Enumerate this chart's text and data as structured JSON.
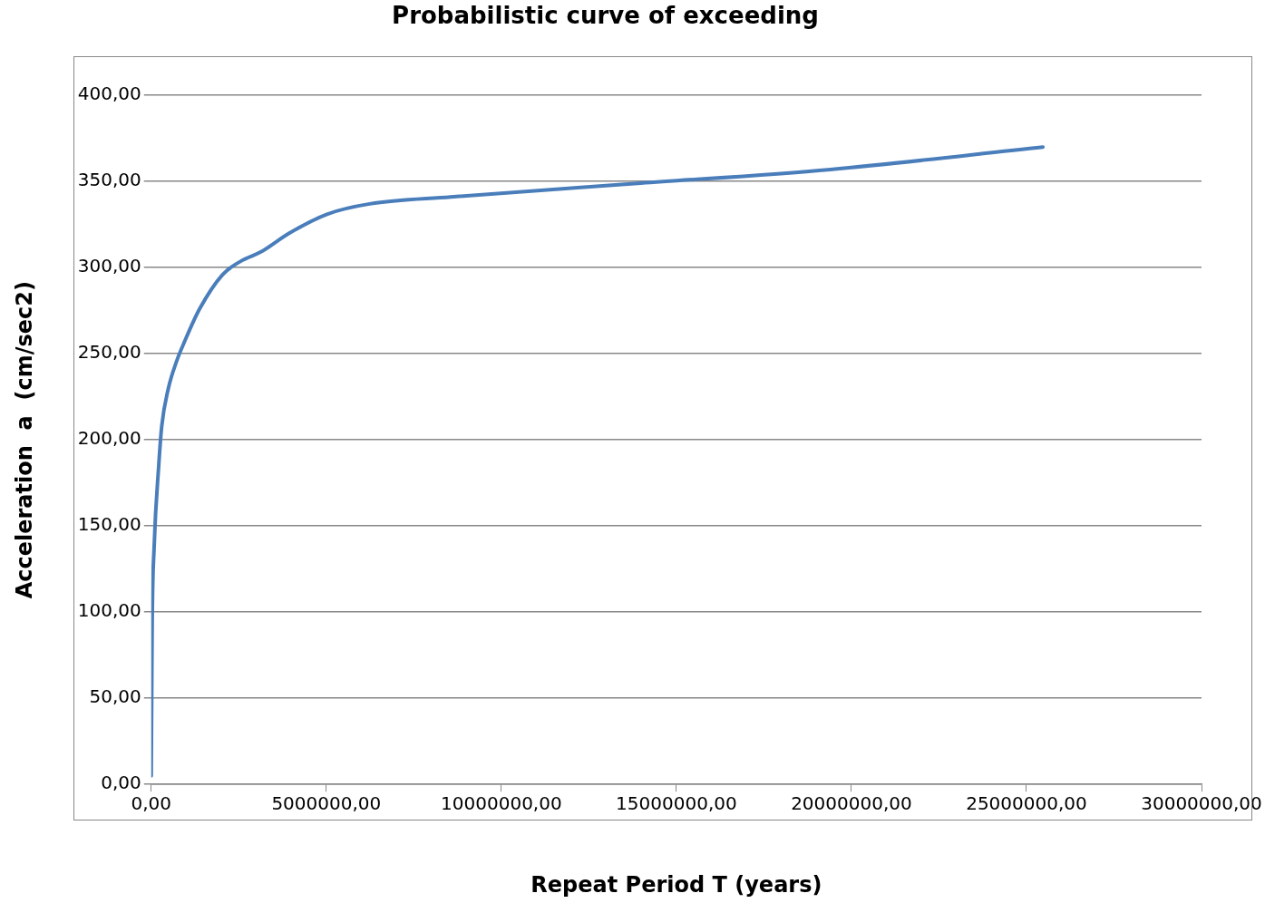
{
  "chart_data": {
    "type": "line",
    "title": "Probabilistic curve of exceeding",
    "xlabel": "Repeat Period T (years)",
    "ylabel": "Acceleration  a  (cm/sec2)",
    "series": [
      {
        "color": "#4a7ebb",
        "x": [
          0,
          27000,
          81000,
          217000,
          300000,
          490000,
          730000,
          950000,
          1380000,
          2040000,
          2580000,
          3120000,
          3940000,
          5020000,
          6240000,
          8550000,
          13980000,
          19400000,
          25470000
        ],
        "values": [
          5,
          93,
          137,
          186,
          208,
          230,
          246,
          257,
          276,
          296,
          304,
          309,
          320,
          331,
          337,
          341,
          349,
          357,
          370
        ]
      }
    ],
    "xlim": [
      0,
      30000000
    ],
    "xticks": [
      {
        "value": 0,
        "label": "0,00"
      },
      {
        "value": 5000000,
        "label": "5000000,00"
      },
      {
        "value": 10000000,
        "label": "10000000,00"
      },
      {
        "value": 15000000,
        "label": "15000000,00"
      },
      {
        "value": 20000000,
        "label": "20000000,00"
      },
      {
        "value": 25000000,
        "label": "25000000,00"
      },
      {
        "value": 30000000,
        "label": "30000000,00"
      }
    ],
    "ylim": [
      0,
      400
    ],
    "yticks": [
      {
        "value": 0,
        "label": "0,00"
      },
      {
        "value": 50,
        "label": "50,00"
      },
      {
        "value": 100,
        "label": "100,00"
      },
      {
        "value": 150,
        "label": "150,00"
      },
      {
        "value": 200,
        "label": "200,00"
      },
      {
        "value": 250,
        "label": "250,00"
      },
      {
        "value": 300,
        "label": "300,00"
      },
      {
        "value": 350,
        "label": "350,00"
      },
      {
        "value": 400,
        "label": "400,00"
      }
    ],
    "grid": "y"
  }
}
